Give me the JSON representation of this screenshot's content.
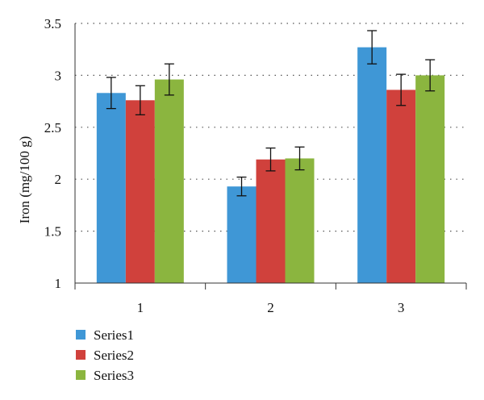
{
  "chart_data": {
    "type": "bar",
    "title": "",
    "xlabel": "",
    "ylabel": "Iron (mg/100 g)",
    "ylim": [
      1,
      3.5
    ],
    "yticks": [
      "1",
      "1.5",
      "2",
      "2.5",
      "3",
      "3.5"
    ],
    "categories": [
      "1",
      "2",
      "3"
    ],
    "grid": "horizontal dotted",
    "legend_position": "bottom-left",
    "series": [
      {
        "name": "Series1",
        "color": "#3f97d6",
        "values": [
          2.83,
          1.93,
          3.27
        ],
        "errors": [
          0.15,
          0.09,
          0.16
        ]
      },
      {
        "name": "Series2",
        "color": "#d0413c",
        "values": [
          2.76,
          2.19,
          2.86
        ],
        "errors": [
          0.14,
          0.11,
          0.15
        ]
      },
      {
        "name": "Series3",
        "color": "#8bb53f",
        "values": [
          2.96,
          2.2,
          3.0
        ],
        "errors": [
          0.15,
          0.11,
          0.15
        ]
      }
    ]
  }
}
